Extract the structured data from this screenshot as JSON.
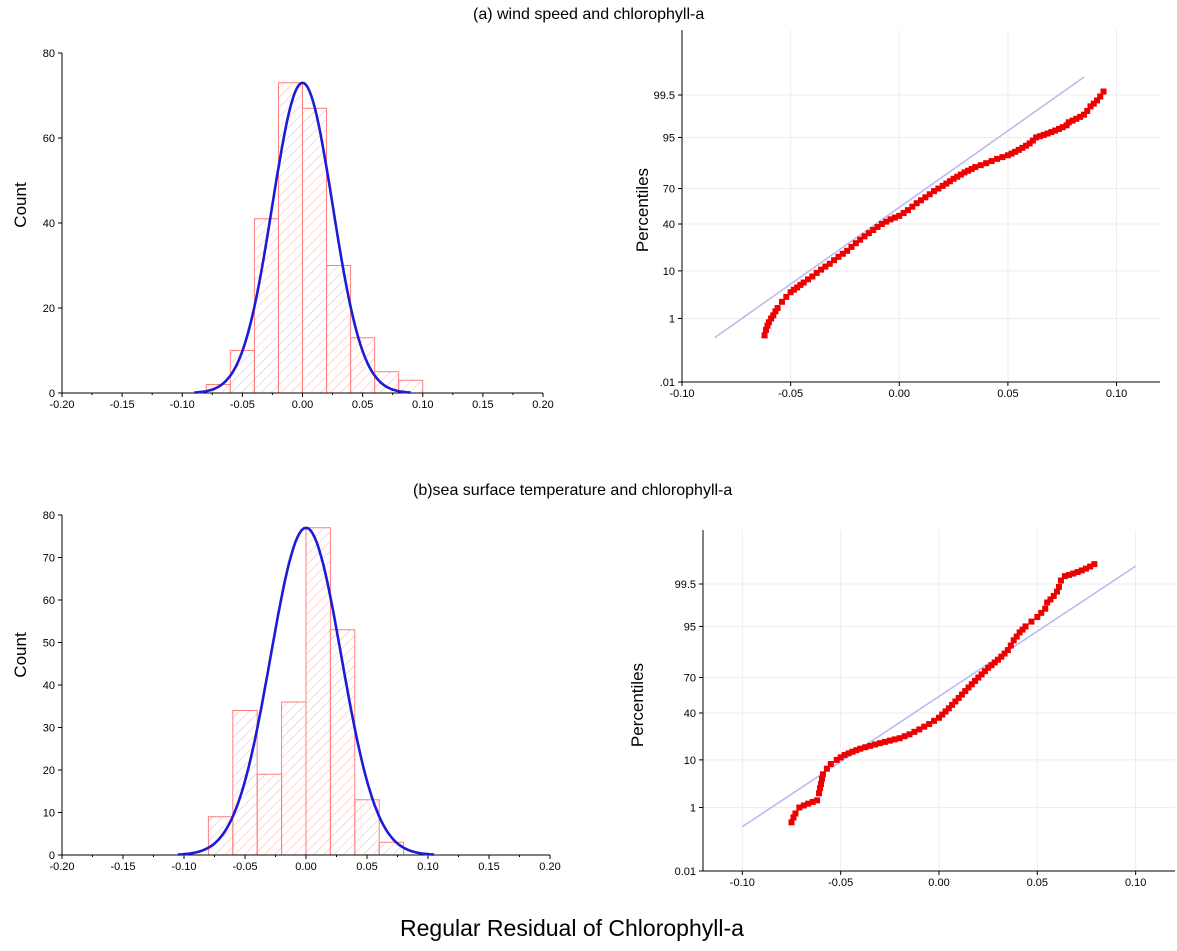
{
  "titles": {
    "panel_a": "(a) wind speed and chlorophyll-a",
    "panel_b": "(b)sea surface temperature and chlorophyll-a",
    "bottom_xlabel": "Regular Residual of Chlorophyll-a"
  },
  "colors": {
    "bar_edge": "#ff7f7f",
    "hatch": "#ffb0b0",
    "normal_curve": "#1c1cd6",
    "qq_points": "#ee0000",
    "ref_line": "#b8b8ee",
    "grid": "#ececf2"
  },
  "chart_data": [
    {
      "id": "hist_a",
      "type": "bar",
      "subtype": "histogram with fitted normal curve",
      "ylabel": "Count",
      "xlim": [
        -0.2,
        0.2
      ],
      "ylim": [
        0,
        80
      ],
      "xticks": [
        -0.2,
        -0.15,
        -0.1,
        -0.05,
        0.0,
        0.05,
        0.1,
        0.15,
        0.2
      ],
      "xtick_labels": [
        "-0.20",
        "-0.15",
        "-0.10",
        "-0.05",
        "0.00",
        "0.05",
        "0.10",
        "0.15",
        "0.20"
      ],
      "yticks": [
        0,
        20,
        40,
        60,
        80
      ],
      "ytick_labels": [
        "0",
        "20",
        "40",
        "60",
        "80"
      ],
      "bin_width": 0.02,
      "bin_starts": [
        -0.08,
        -0.06,
        -0.04,
        -0.02,
        0.0,
        0.02,
        0.04,
        0.06,
        0.08
      ],
      "counts": [
        2,
        10,
        41,
        73,
        67,
        30,
        13,
        5,
        3
      ],
      "normal_fit": {
        "mean": 0.0,
        "sd": 0.025,
        "peak": 73,
        "x_range": [
          -0.09,
          0.09
        ]
      }
    },
    {
      "id": "qq_a",
      "type": "scatter",
      "subtype": "normal probability plot",
      "ylabel": "Percentiles",
      "xlim": [
        -0.1,
        0.12
      ],
      "xticks": [
        -0.1,
        -0.05,
        0.0,
        0.05,
        0.1
      ],
      "xtick_labels": [
        "-0.10",
        "-0.05",
        "0.00",
        "0.05",
        "0.10"
      ],
      "ytick_percentiles": [
        0.01,
        1,
        10,
        40,
        70,
        95,
        99.5
      ],
      "ytick_labels": [
        ".01",
        "1",
        "10",
        "40",
        "70",
        "95",
        "99.5"
      ],
      "ref_line": {
        "x": [
          -0.085,
          0.085
        ],
        "percentile": [
          0.3,
          99.85
        ]
      },
      "points_x": [
        -0.062,
        -0.06,
        -0.058,
        -0.056,
        -0.054,
        -0.052,
        -0.05,
        -0.047,
        -0.044,
        -0.04,
        -0.036,
        -0.032,
        -0.028,
        -0.024,
        -0.02,
        -0.016,
        -0.012,
        -0.008,
        -0.004,
        0.0,
        0.004,
        0.008,
        0.012,
        0.016,
        0.02,
        0.025,
        0.03,
        0.035,
        0.04,
        0.045,
        0.05,
        0.055,
        0.06,
        0.063,
        0.077,
        0.078,
        0.085,
        0.088,
        0.094
      ],
      "points_percentile": [
        0.35,
        0.8,
        1.2,
        1.8,
        2.5,
        3.2,
        4.0,
        5.0,
        6.2,
        8.0,
        10.5,
        13.0,
        16.5,
        20.0,
        25.0,
        30.0,
        35.0,
        40.0,
        44.0,
        47.0,
        52.0,
        58.0,
        63.0,
        68.0,
        72.0,
        77.0,
        81.0,
        84.0,
        86.0,
        88.0,
        89.5,
        91.5,
        93.5,
        95.0,
        97.2,
        97.6,
        98.4,
        99.0,
        99.6
      ]
    },
    {
      "id": "hist_b",
      "type": "bar",
      "subtype": "histogram with fitted normal curve",
      "ylabel": "Count",
      "xlim": [
        -0.2,
        0.2
      ],
      "ylim": [
        0,
        80
      ],
      "xticks": [
        -0.2,
        -0.15,
        -0.1,
        -0.05,
        0.0,
        0.05,
        0.1,
        0.15,
        0.2
      ],
      "xtick_labels": [
        "-0.20",
        "-0.15",
        "-0.10",
        "-0.05",
        "0.00",
        "0.05",
        "0.10",
        "0.15",
        "0.20"
      ],
      "yticks": [
        0,
        10,
        20,
        30,
        40,
        50,
        60,
        70,
        80
      ],
      "ytick_labels": [
        "0",
        "10",
        "20",
        "30",
        "40",
        "50",
        "60",
        "70",
        "80"
      ],
      "bin_width": 0.02,
      "bin_starts": [
        -0.08,
        -0.06,
        -0.04,
        -0.02,
        0.0,
        0.02,
        0.04,
        0.06
      ],
      "counts": [
        9,
        34,
        19,
        36,
        77,
        53,
        13,
        3
      ],
      "normal_fit": {
        "mean": 0.0,
        "sd": 0.029,
        "peak": 77,
        "x_range": [
          -0.105,
          0.105
        ]
      }
    },
    {
      "id": "qq_b",
      "type": "scatter",
      "subtype": "normal probability plot",
      "ylabel": "Percentiles",
      "xlim": [
        -0.12,
        0.12
      ],
      "xticks": [
        -0.1,
        -0.05,
        0.0,
        0.05,
        0.1
      ],
      "xtick_labels": [
        "-0.10",
        "-0.05",
        "0.00",
        "0.05",
        "0.10"
      ],
      "ytick_percentiles": [
        0.01,
        1,
        10,
        40,
        70,
        95,
        99.5
      ],
      "ytick_labels": [
        "0.01",
        "1",
        "10",
        "40",
        "70",
        "95",
        "99.5"
      ],
      "ref_line": {
        "x": [
          -0.1,
          0.1
        ],
        "percentile": [
          0.3,
          99.85
        ]
      },
      "points_x": [
        -0.075,
        -0.073,
        -0.071,
        -0.062,
        -0.061,
        -0.06,
        -0.059,
        -0.057,
        -0.055,
        -0.052,
        -0.048,
        -0.044,
        -0.04,
        -0.035,
        -0.03,
        -0.025,
        -0.02,
        -0.015,
        -0.01,
        -0.005,
        0.0,
        0.005,
        0.01,
        0.015,
        0.02,
        0.025,
        0.03,
        0.035,
        0.038,
        0.041,
        0.044,
        0.047,
        0.05,
        0.052,
        0.054,
        0.055,
        0.06,
        0.062,
        0.064,
        0.079
      ],
      "points_percentile": [
        0.4,
        0.7,
        1.0,
        1.5,
        2.2,
        3.5,
        5.5,
        7.0,
        8.5,
        10.0,
        12.0,
        13.5,
        15.0,
        16.5,
        18.0,
        19.5,
        21.0,
        23.5,
        27.0,
        31.0,
        36.0,
        44.0,
        53.0,
        62.0,
        70.0,
        77.0,
        82.0,
        87.0,
        91.0,
        93.5,
        95.0,
        96.0,
        96.8,
        97.4,
        97.9,
        98.5,
        99.2,
        99.6,
        99.7,
        99.87
      ]
    }
  ]
}
